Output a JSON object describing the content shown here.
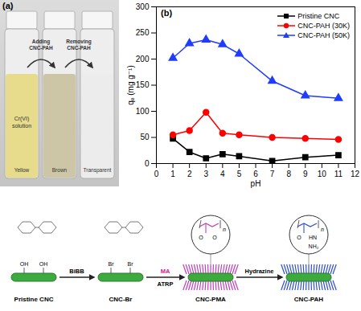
{
  "figure": {
    "panel_labels": [
      "(a)",
      "(b)"
    ]
  },
  "photo": {
    "vials": [
      {
        "top_label": "Cr(VI) solution",
        "label": "Yellow"
      },
      {
        "label": "Brown"
      },
      {
        "label": "Transparent"
      }
    ],
    "arrows": [
      "Adding CNC-PAH",
      "Removing CNC-PAH"
    ]
  },
  "chart_data": {
    "type": "line",
    "xlabel": "pH",
    "ylabel": "qₑ (mg g⁻¹)",
    "x": [
      1,
      2,
      3,
      4,
      5,
      7,
      9,
      11
    ],
    "series": [
      {
        "name": "Pristine CNC",
        "color": "#000000",
        "marker": "square",
        "values": [
          48,
          22,
          10,
          18,
          14,
          5,
          12,
          16
        ]
      },
      {
        "name": "CNC-PAH (30K)",
        "color": "#ff0000",
        "marker": "circle",
        "values": [
          55,
          63,
          98,
          58,
          55,
          50,
          48,
          46
        ]
      },
      {
        "name": "CNC-PAH (50K)",
        "color": "#1f3cff",
        "marker": "triangle",
        "values": [
          202,
          230,
          237,
          228,
          210,
          158,
          130,
          125
        ]
      }
    ],
    "xlim": [
      0,
      12
    ],
    "xticks": [
      0,
      1,
      2,
      3,
      4,
      5,
      6,
      7,
      8,
      9,
      10,
      11,
      12
    ],
    "ylim": [
      0,
      300
    ],
    "yticks": [
      0,
      50,
      100,
      150,
      200,
      250,
      300
    ],
    "legend": "top-right"
  },
  "scheme": {
    "steps": [
      {
        "label": "Pristine CNC",
        "groups": [
          "OH",
          "OH"
        ]
      },
      {
        "label": "CNC-Br",
        "groups": [
          "Br",
          "Br"
        ]
      },
      {
        "label": "CNC-PMA",
        "inset": [
          "O",
          "O"
        ],
        "repeat": "n"
      },
      {
        "label": "CNC-PAH",
        "inset": [
          "O",
          "HN",
          "NH₂"
        ],
        "repeat": "n"
      }
    ],
    "reactions": [
      {
        "reagent": "BiBB"
      },
      {
        "reagent": "MA",
        "condition": "ATRP"
      },
      {
        "reagent": "Hydrazine"
      }
    ]
  }
}
